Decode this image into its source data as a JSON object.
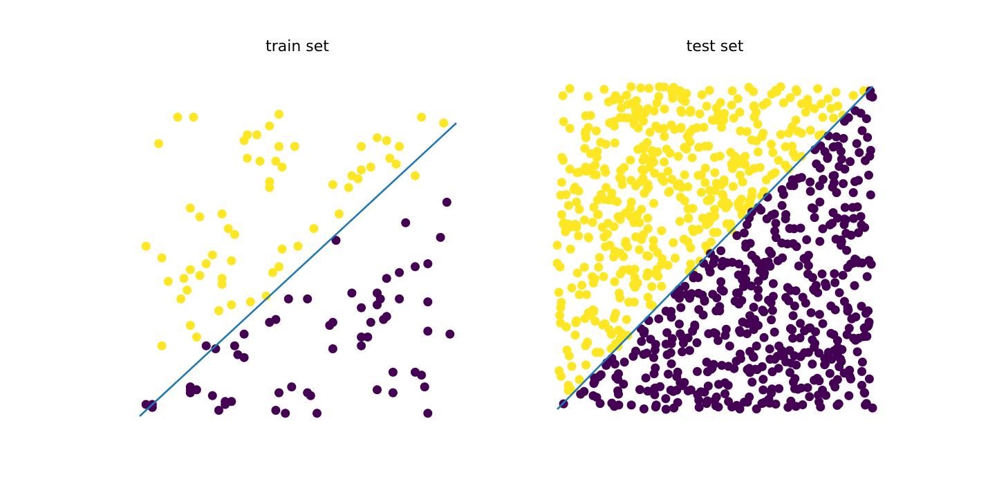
{
  "colors": {
    "class_0": "#440154",
    "class_1": "#fde725",
    "boundary": "#1f77b4"
  },
  "chart_data": [
    {
      "type": "scatter",
      "title": "train set",
      "xlabel": "",
      "ylabel": "",
      "xlim": [
        0,
        1
      ],
      "ylim": [
        0,
        1
      ],
      "grid": false,
      "axes_visible": false,
      "legend": null,
      "boundary_line": {
        "x": [
          0,
          1
        ],
        "y": [
          0,
          1
        ]
      },
      "series": [
        {
          "class": 1,
          "points": [
            [
              0.12,
              1.02
            ],
            [
              0.17,
              1.02
            ],
            [
              0.44,
              1.03
            ],
            [
              0.89,
              1.02
            ],
            [
              0.06,
              0.93
            ],
            [
              0.34,
              0.96
            ],
            [
              0.41,
              0.99
            ],
            [
              0.96,
              1.0
            ],
            [
              0.33,
              0.94
            ],
            [
              0.37,
              0.96
            ],
            [
              0.44,
              0.92
            ],
            [
              0.49,
              0.92
            ],
            [
              0.38,
              0.87
            ],
            [
              0.43,
              0.87
            ],
            [
              0.34,
              0.88
            ],
            [
              0.45,
              0.85
            ],
            [
              0.7,
              0.92
            ],
            [
              0.75,
              0.95
            ],
            [
              0.82,
              0.92
            ],
            [
              0.78,
              0.94
            ],
            [
              0.79,
              0.88
            ],
            [
              0.73,
              0.85
            ],
            [
              0.81,
              0.86
            ],
            [
              0.7,
              0.84
            ],
            [
              0.69,
              0.81
            ],
            [
              0.87,
              0.82
            ],
            [
              0.41,
              0.8
            ],
            [
              0.67,
              0.82
            ],
            [
              0.66,
              0.78
            ],
            [
              0.61,
              0.79
            ],
            [
              0.41,
              0.78
            ],
            [
              0.16,
              0.71
            ],
            [
              0.26,
              0.69
            ],
            [
              0.19,
              0.68
            ],
            [
              0.28,
              0.64
            ],
            [
              0.3,
              0.62
            ],
            [
              0.02,
              0.58
            ],
            [
              0.07,
              0.54
            ],
            [
              0.23,
              0.55
            ],
            [
              0.29,
              0.53
            ],
            [
              0.16,
              0.5
            ],
            [
              0.09,
              0.46
            ],
            [
              0.21,
              0.52
            ],
            [
              0.14,
              0.47
            ],
            [
              0.19,
              0.48
            ],
            [
              0.26,
              0.47
            ],
            [
              0.26,
              0.45
            ],
            [
              0.45,
              0.57
            ],
            [
              0.5,
              0.58
            ],
            [
              0.63,
              0.69
            ],
            [
              0.55,
              0.64
            ],
            [
              0.44,
              0.51
            ],
            [
              0.42,
              0.49
            ],
            [
              0.29,
              0.38
            ],
            [
              0.15,
              0.43
            ],
            [
              0.13,
              0.4
            ],
            [
              0.25,
              0.36
            ],
            [
              0.35,
              0.39
            ],
            [
              0.4,
              0.41
            ],
            [
              0.16,
              0.31
            ],
            [
              0.18,
              0.27
            ],
            [
              0.07,
              0.24
            ]
          ]
        },
        {
          "class": 0,
          "points": [
            [
              0.97,
              0.73
            ],
            [
              0.84,
              0.66
            ],
            [
              0.95,
              0.61
            ],
            [
              0.62,
              0.6
            ],
            [
              0.82,
              0.49
            ],
            [
              0.87,
              0.51
            ],
            [
              0.91,
              0.52
            ],
            [
              0.78,
              0.47
            ],
            [
              0.75,
              0.42
            ],
            [
              0.76,
              0.4
            ],
            [
              0.67,
              0.42
            ],
            [
              0.82,
              0.4
            ],
            [
              0.91,
              0.39
            ],
            [
              0.75,
              0.38
            ],
            [
              0.7,
              0.37
            ],
            [
              0.78,
              0.34
            ],
            [
              0.73,
              0.32
            ],
            [
              0.77,
              0.33
            ],
            [
              0.61,
              0.32
            ],
            [
              0.47,
              0.4
            ],
            [
              0.53,
              0.4
            ],
            [
              0.43,
              0.33
            ],
            [
              0.41,
              0.32
            ],
            [
              0.91,
              0.29
            ],
            [
              0.98,
              0.28
            ],
            [
              0.72,
              0.27
            ],
            [
              0.7,
              0.27
            ],
            [
              0.7,
              0.24
            ],
            [
              0.61,
              0.23
            ],
            [
              0.6,
              0.31
            ],
            [
              0.33,
              0.28
            ],
            [
              0.3,
              0.24
            ],
            [
              0.31,
              0.21
            ],
            [
              0.33,
              0.2
            ],
            [
              0.24,
              0.23
            ],
            [
              0.21,
              0.24
            ],
            [
              0.8,
              0.15
            ],
            [
              0.87,
              0.15
            ],
            [
              0.89,
              0.14
            ],
            [
              0.75,
              0.09
            ],
            [
              0.9,
              0.1
            ],
            [
              0.8,
              0.08
            ],
            [
              0.48,
              0.1
            ],
            [
              0.53,
              0.08
            ],
            [
              0.16,
              0.09
            ],
            [
              0.16,
              0.1
            ],
            [
              0.18,
              0.09
            ],
            [
              0.16,
              0.08
            ],
            [
              0.44,
              0.08
            ],
            [
              0.54,
              0.07
            ],
            [
              0.23,
              0.07
            ],
            [
              0.29,
              0.05
            ],
            [
              0.27,
              0.04
            ],
            [
              0.27,
              0.05
            ],
            [
              0.25,
              0.02
            ],
            [
              0.02,
              0.04
            ],
            [
              0.04,
              0.04
            ],
            [
              0.04,
              0.03
            ],
            [
              0.43,
              0.02
            ],
            [
              0.56,
              0.01
            ],
            [
              0.91,
              0.01
            ],
            [
              0.46,
              0.01
            ]
          ]
        }
      ]
    },
    {
      "type": "scatter",
      "title": "test set",
      "xlabel": "",
      "ylabel": "",
      "xlim": [
        0,
        1
      ],
      "ylim": [
        0,
        1
      ],
      "grid": false,
      "axes_visible": false,
      "legend": null,
      "boundary_line": {
        "x": [
          0,
          1
        ],
        "y": [
          0,
          1
        ]
      },
      "series": [
        {
          "class": 1,
          "points": [],
          "count_note": ""
        },
        {
          "class": 0,
          "points": []
        }
      ]
    }
  ]
}
